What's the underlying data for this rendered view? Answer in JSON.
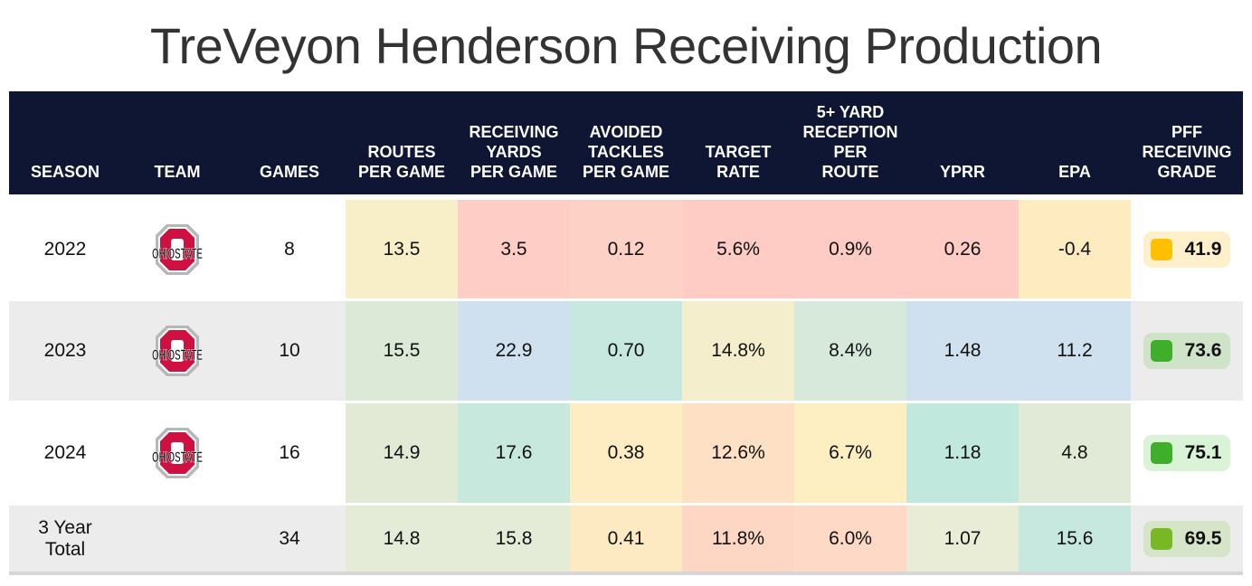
{
  "title": "TreVeyon Henderson Receiving Production",
  "columns": [
    "SEASON",
    "TEAM",
    "GAMES",
    "ROUTES\nPER GAME",
    "RECEIVING\nYARDS\nPER GAME",
    "AVOIDED\nTACKLES\nPER GAME",
    "TARGET\nRATE",
    "5+ YARD\nRECEPTION\nPER\nROUTE",
    "YPRR",
    "EPA",
    "PFF\nRECEIVING\nGRADE"
  ],
  "rows": [
    {
      "season": "2022",
      "team": "Ohio State",
      "team_logo": "ohio-state-logo",
      "games": "8",
      "stats": [
        "13.5",
        "3.5",
        "0.12",
        "5.6%",
        "0.9%",
        "0.26",
        "-0.4"
      ],
      "stat_colors": [
        "#f8efc8",
        "#fecdc5",
        "#fed1c6",
        "#fecbc5",
        "#fecbc5",
        "#fecbc5",
        "#feebc0"
      ],
      "grade": "41.9",
      "grade_color": "#ffc000",
      "grade_bg": "#fff0cc"
    },
    {
      "season": "2023",
      "team": "Ohio State",
      "team_logo": "ohio-state-logo",
      "games": "10",
      "stats": [
        "15.5",
        "22.9",
        "0.70",
        "14.8%",
        "8.4%",
        "1.48",
        "11.2"
      ],
      "stat_colors": [
        "#dce9d6",
        "#cfe0ee",
        "#c6e8df",
        "#f5eecc",
        "#d6e9da",
        "#cfe0ee",
        "#cfe0ee"
      ],
      "grade": "73.6",
      "grade_color": "#3fae2a",
      "grade_bg": "#cfe3c8"
    },
    {
      "season": "2024",
      "team": "Ohio State",
      "team_logo": "ohio-state-logo",
      "games": "16",
      "stats": [
        "14.9",
        "17.6",
        "0.38",
        "12.6%",
        "6.7%",
        "1.18",
        "4.8"
      ],
      "stat_colors": [
        "#e2ead6",
        "#c6e8dd",
        "#feecc2",
        "#fee1c4",
        "#fdefc2",
        "#c0e8dc",
        "#e1ead6"
      ],
      "grade": "75.1",
      "grade_color": "#3fae2a",
      "grade_bg": "#d8f3d5"
    },
    {
      "season": "3 Year\nTotal",
      "team": "",
      "team_logo": "",
      "games": "34",
      "stats": [
        "14.8",
        "15.8",
        "0.41",
        "11.8%",
        "6.0%",
        "1.07",
        "15.6"
      ],
      "stat_colors": [
        "#e4ebd7",
        "#e4ebd7",
        "#feeac2",
        "#fed6c4",
        "#fed9c5",
        "#eaedd6",
        "#c6e8df"
      ],
      "grade": "69.5",
      "grade_color": "#78b825",
      "grade_bg": "#d6e4c8"
    }
  ]
}
